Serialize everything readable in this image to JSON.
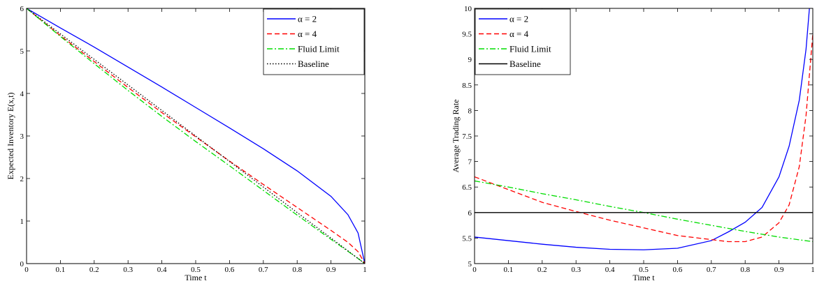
{
  "chart_data": [
    {
      "type": "line",
      "xlabel": "Time t",
      "ylabel": "Expected Inventory E(x,t)",
      "xlim": [
        0,
        1
      ],
      "ylim": [
        0,
        6
      ],
      "xticks": [
        "0",
        "0.1",
        "0.2",
        "0.3",
        "0.4",
        "0.5",
        "0.6",
        "0.7",
        "0.8",
        "0.9",
        "1"
      ],
      "yticks": [
        "0",
        "1",
        "2",
        "3",
        "4",
        "5",
        "6"
      ],
      "legend_position": "top-right",
      "grid": false,
      "series": [
        {
          "name": "α = 2",
          "color": "#0000ff",
          "dash": "solid",
          "x": [
            0,
            0.1,
            0.2,
            0.3,
            0.4,
            0.5,
            0.6,
            0.7,
            0.8,
            0.9,
            0.95,
            0.98,
            1.0
          ],
          "y": [
            6.0,
            5.54,
            5.09,
            4.62,
            4.15,
            3.67,
            3.19,
            2.7,
            2.18,
            1.58,
            1.15,
            0.72,
            0.0
          ]
        },
        {
          "name": "α = 4",
          "color": "#ff0000",
          "dash": "dashed",
          "x": [
            0,
            0.1,
            0.2,
            0.3,
            0.4,
            0.5,
            0.6,
            0.7,
            0.8,
            0.9,
            0.95,
            0.98,
            1.0
          ],
          "y": [
            6.0,
            5.36,
            4.75,
            4.14,
            3.55,
            2.98,
            2.41,
            1.86,
            1.32,
            0.78,
            0.5,
            0.28,
            0.0
          ]
        },
        {
          "name": "Fluid Limit",
          "color": "#00dd00",
          "dash": "dashdot",
          "x": [
            0,
            0.1,
            0.2,
            0.3,
            0.4,
            0.5,
            0.6,
            0.7,
            0.8,
            0.9,
            0.95,
            0.98,
            1.0
          ],
          "y": [
            6.0,
            5.34,
            4.7,
            4.07,
            3.46,
            2.87,
            2.3,
            1.72,
            1.14,
            0.57,
            0.29,
            0.12,
            0.0
          ]
        },
        {
          "name": "Baseline",
          "color": "#000000",
          "dash": "dotted",
          "x": [
            0,
            1
          ],
          "y": [
            6.0,
            0.0
          ]
        }
      ]
    },
    {
      "type": "line",
      "xlabel": "Time t",
      "ylabel": "Average Trading Rate",
      "xlim": [
        0,
        1
      ],
      "ylim": [
        5,
        10
      ],
      "xticks": [
        "0",
        "0.1",
        "0.2",
        "0.3",
        "0.4",
        "0.5",
        "0.6",
        "0.7",
        "0.8",
        "0.9",
        "1"
      ],
      "yticks": [
        "5",
        "5.5",
        "6",
        "6.5",
        "7",
        "7.5",
        "8",
        "8.5",
        "9",
        "9.5",
        "10"
      ],
      "legend_position": "top-left",
      "grid": false,
      "series": [
        {
          "name": "α = 2",
          "color": "#0000ff",
          "dash": "solid",
          "x": [
            0,
            0.1,
            0.2,
            0.3,
            0.4,
            0.5,
            0.6,
            0.7,
            0.75,
            0.8,
            0.85,
            0.9,
            0.93,
            0.96,
            0.98,
            0.99
          ],
          "y": [
            5.52,
            5.45,
            5.38,
            5.32,
            5.28,
            5.27,
            5.3,
            5.45,
            5.62,
            5.81,
            6.1,
            6.7,
            7.3,
            8.2,
            9.2,
            10.0
          ]
        },
        {
          "name": "α = 4",
          "color": "#ff0000",
          "dash": "dashed",
          "x": [
            0,
            0.1,
            0.2,
            0.3,
            0.4,
            0.5,
            0.6,
            0.7,
            0.75,
            0.8,
            0.85,
            0.9,
            0.93,
            0.96,
            0.98,
            0.99,
            1.0
          ],
          "y": [
            6.7,
            6.45,
            6.2,
            6.02,
            5.85,
            5.7,
            5.55,
            5.47,
            5.43,
            5.43,
            5.52,
            5.8,
            6.15,
            6.9,
            7.9,
            8.7,
            9.5
          ]
        },
        {
          "name": "Fluid Limit",
          "color": "#00dd00",
          "dash": "dashdot",
          "x": [
            0,
            0.1,
            0.2,
            0.3,
            0.4,
            0.5,
            0.6,
            0.7,
            0.8,
            0.9,
            1.0
          ],
          "y": [
            6.62,
            6.5,
            6.37,
            6.25,
            6.12,
            6.0,
            5.87,
            5.75,
            5.63,
            5.52,
            5.43
          ]
        },
        {
          "name": "Baseline",
          "color": "#000000",
          "dash": "solid",
          "x": [
            0,
            1
          ],
          "y": [
            6.0,
            6.0
          ]
        }
      ]
    }
  ]
}
